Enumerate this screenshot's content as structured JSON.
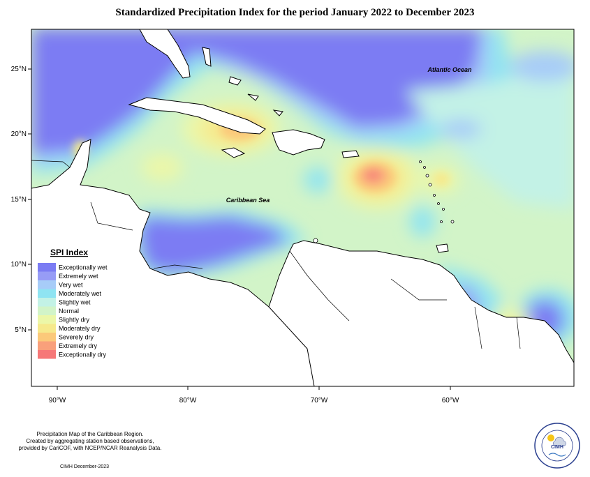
{
  "title": "Standardized Precipitation Index for the period January 2022 to December 2023",
  "lat_labels": [
    "25°N",
    "20°N",
    "15°N",
    "10°N",
    "5°N"
  ],
  "lon_labels": [
    "90°W",
    "80°W",
    "70°W",
    "60°W"
  ],
  "places": {
    "atlantic": "Atlantic Ocean",
    "caribbean": "Caribbean Sea"
  },
  "legend": {
    "title": "SPI Index",
    "items": [
      {
        "label": "Exceptionally wet",
        "color": "#7b7cf3"
      },
      {
        "label": "Extremely wet",
        "color": "#979cf6"
      },
      {
        "label": "Very wet",
        "color": "#a7ccf8"
      },
      {
        "label": "Moderately wet",
        "color": "#8fe4f2"
      },
      {
        "label": "Slightly wet",
        "color": "#c3f2e6"
      },
      {
        "label": "Normal",
        "color": "#d2f4c8"
      },
      {
        "label": "Slightly dry",
        "color": "#ecf7a8"
      },
      {
        "label": "Moderately dry",
        "color": "#f6e98c"
      },
      {
        "label": "Severely dry",
        "color": "#fbc97a"
      },
      {
        "label": "Extremely dry",
        "color": "#f9a07b"
      },
      {
        "label": "Exceptionally dry",
        "color": "#f67878"
      }
    ]
  },
  "credits": [
    "Precipitation Map of the Caribbean Region.",
    "Created by aggregating station based observations,",
    "provided by CariCOF, with NCEP/NCAR Reanalysis Data."
  ],
  "date": "CIMH December-2023",
  "logo": {
    "abbr": "CIMH",
    "ring_text": "Caribbean Institute for Meteorology and Hydrology"
  }
}
